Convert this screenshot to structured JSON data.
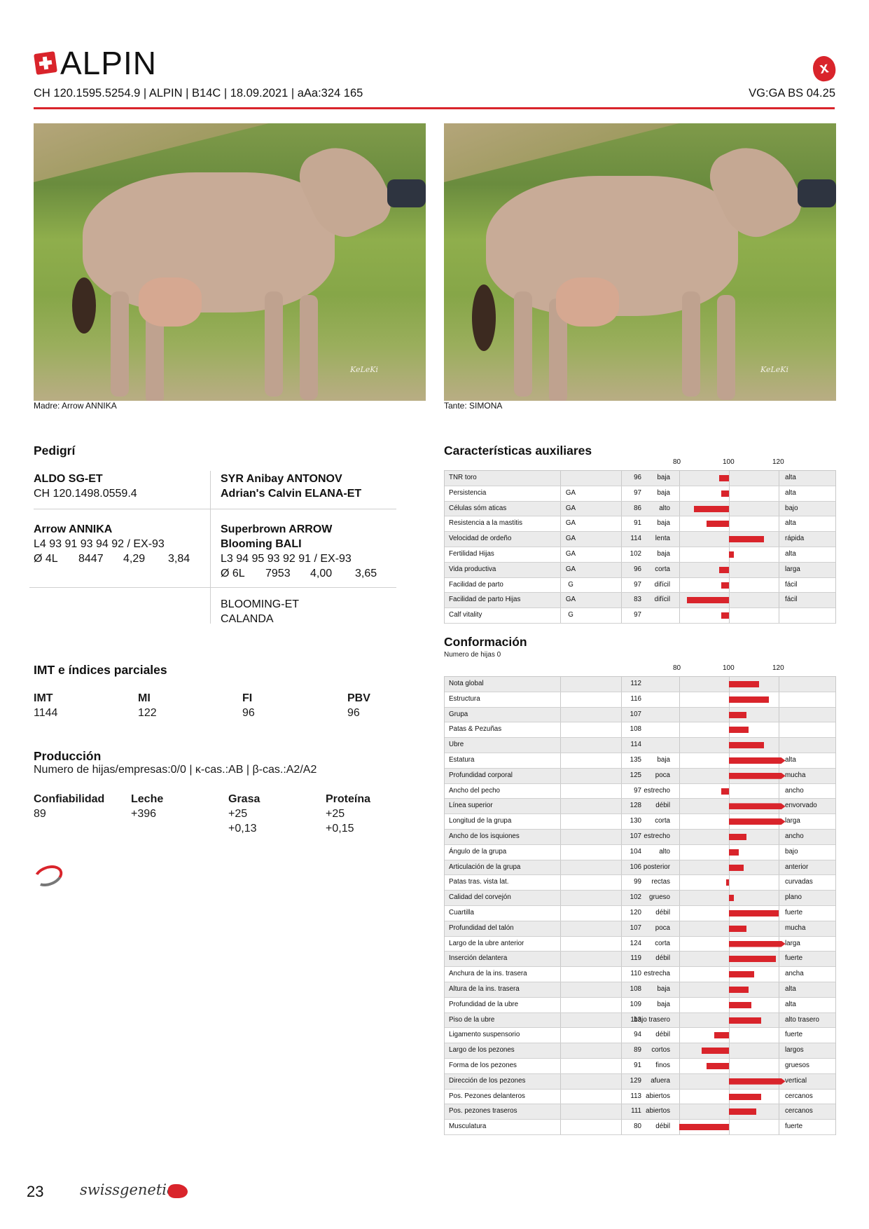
{
  "header": {
    "name": "ALPIN",
    "subline": "CH 120.1595.5254.9 | ALPIN | B14C | 18.09.2021 | aAa:324 165",
    "vg": "VG:GA BS 04.25"
  },
  "photos": [
    {
      "caption": "Madre: Arrow ANNIKA",
      "watermark": "KeLeKi"
    },
    {
      "caption": "Tante: SIMONA",
      "watermark": "KeLeKi"
    }
  ],
  "pedigree": {
    "title": "Pedigrí",
    "sire": {
      "name": "ALDO SG-ET",
      "id": "CH 120.1498.0559.4"
    },
    "sire_parents": {
      "line1": "SYR Anibay ANTONOV",
      "line2": "Adrian's Calvin ELANA-ET"
    },
    "dam": {
      "name": "Arrow ANNIKA",
      "line1": "L4 93 91 93 94 92 / EX-93",
      "avg": "Ø 4L",
      "milk": "8447",
      "fat": "4,29",
      "protein": "3,84"
    },
    "dam_sire": {
      "name": "Superbrown ARROW"
    },
    "dam_dam": {
      "name": "Blooming BALI",
      "line1": "L3 94 95 93 92 91 / EX-93",
      "avg": "Ø 6L",
      "milk": "7953",
      "fat": "4,00",
      "protein": "3,65"
    },
    "ggdam": {
      "line1": "BLOOMING-ET",
      "line2": "CALANDA"
    }
  },
  "imt": {
    "title": "IMT e índices parciales",
    "items": [
      {
        "label": "IMT",
        "value": "1144"
      },
      {
        "label": "MI",
        "value": "122"
      },
      {
        "label": "FI",
        "value": "96"
      },
      {
        "label": "PBV",
        "value": "96"
      }
    ]
  },
  "production": {
    "title": "Producción",
    "subtitle": "Numero de hijas/empresas:0/0 | κ-cas.:AB | β-cas.:A2/A2",
    "items": [
      {
        "label": "Confiabilidad",
        "v1": "89",
        "v2": ""
      },
      {
        "label": "Leche",
        "v1": "+396",
        "v2": ""
      },
      {
        "label": "Grasa",
        "v1": "+25",
        "v2": "+0,13"
      },
      {
        "label": "Proteína",
        "v1": "+25",
        "v2": "+0,15"
      }
    ]
  },
  "aux": {
    "title": "Características auxiliares",
    "scale": [
      "80",
      "100",
      "120"
    ],
    "rows": [
      {
        "name": "TNR toro",
        "type": "",
        "value": 96,
        "low": "baja",
        "high": "alta"
      },
      {
        "name": "Persistencia",
        "type": "GA",
        "value": 97,
        "low": "baja",
        "high": "alta"
      },
      {
        "name": "Células sóm aticas",
        "type": "GA",
        "value": 86,
        "low": "alto",
        "high": "bajo"
      },
      {
        "name": "Resistencia a la mastitis",
        "type": "GA",
        "value": 91,
        "low": "baja",
        "high": "alta"
      },
      {
        "name": "Velocidad de ordeño",
        "type": "GA",
        "value": 114,
        "low": "lenta",
        "high": "rápida"
      },
      {
        "name": "Fertilidad Hijas",
        "type": "GA",
        "value": 102,
        "low": "baja",
        "high": "alta"
      },
      {
        "name": "Vida productiva",
        "type": "GA",
        "value": 96,
        "low": "corta",
        "high": "larga"
      },
      {
        "name": "Facilidad de parto",
        "type": "G",
        "value": 97,
        "low": "difícil",
        "high": "fácil"
      },
      {
        "name": "Facilidad de parto Hijas",
        "type": "GA",
        "value": 83,
        "low": "difícil",
        "high": "fácil"
      },
      {
        "name": "Calf vitality",
        "type": "G",
        "value": 97,
        "low": "",
        "high": ""
      }
    ]
  },
  "conf": {
    "title": "Conformación",
    "subtitle": "Numero de hijas 0",
    "scale": [
      "80",
      "100",
      "120"
    ],
    "rows": [
      {
        "name": "Nota global",
        "value": 112,
        "low": "",
        "high": ""
      },
      {
        "name": "Estructura",
        "value": 116,
        "low": "",
        "high": ""
      },
      {
        "name": "Grupa",
        "value": 107,
        "low": "",
        "high": ""
      },
      {
        "name": "Patas & Pezuñas",
        "value": 108,
        "low": "",
        "high": ""
      },
      {
        "name": "Ubre",
        "value": 114,
        "low": "",
        "high": ""
      },
      {
        "name": "Estatura",
        "value": 135,
        "low": "baja",
        "high": "alta"
      },
      {
        "name": "Profundidad corporal",
        "value": 125,
        "low": "poca",
        "high": "mucha"
      },
      {
        "name": "Ancho del pecho",
        "value": 97,
        "low": "estrecho",
        "high": "ancho"
      },
      {
        "name": "Línea superior",
        "value": 128,
        "low": "débil",
        "high": "envorvado"
      },
      {
        "name": "Longitud de la grupa",
        "value": 130,
        "low": "corta",
        "high": "larga"
      },
      {
        "name": "Ancho de los isquiones",
        "value": 107,
        "low": "estrecho",
        "high": "ancho"
      },
      {
        "name": "Ángulo de la grupa",
        "value": 104,
        "low": "alto",
        "high": "bajo"
      },
      {
        "name": "Articulación de la grupa",
        "value": 106,
        "low": "posterior",
        "high": "anterior"
      },
      {
        "name": "Patas tras. vista lat.",
        "value": 99,
        "low": "rectas",
        "high": "curvadas"
      },
      {
        "name": "Calidad del corvejón",
        "value": 102,
        "low": "grueso",
        "high": "plano"
      },
      {
        "name": "Cuartilla",
        "value": 120,
        "low": "débil",
        "high": "fuerte"
      },
      {
        "name": "Profundidad del talón",
        "value": 107,
        "low": "poca",
        "high": "mucha"
      },
      {
        "name": "Largo de la ubre anterior",
        "value": 124,
        "low": "corta",
        "high": "larga"
      },
      {
        "name": "Inserción delantera",
        "value": 119,
        "low": "débil",
        "high": "fuerte"
      },
      {
        "name": "Anchura de la ins. trasera",
        "value": 110,
        "low": "estrecha",
        "high": "ancha"
      },
      {
        "name": "Altura de la ins. trasera",
        "value": 108,
        "low": "baja",
        "high": "alta"
      },
      {
        "name": "Profundidad de la ubre",
        "value": 109,
        "low": "baja",
        "high": "alta"
      },
      {
        "name": "Piso de la ubre",
        "value": 113,
        "low": "bajo trasero",
        "high": "alto trasero"
      },
      {
        "name": "Ligamento suspensorio",
        "value": 94,
        "low": "débil",
        "high": "fuerte"
      },
      {
        "name": "Largo de los pezones",
        "value": 89,
        "low": "cortos",
        "high": "largos"
      },
      {
        "name": "Forma de los pezones",
        "value": 91,
        "low": "finos",
        "high": "gruesos"
      },
      {
        "name": "Dirección de los pezones",
        "value": 129,
        "low": "afuera",
        "high": "vertical"
      },
      {
        "name": "Pos. Pezones delanteros",
        "value": 113,
        "low": "abiertos",
        "high": "cercanos"
      },
      {
        "name": "Pos. pezones traseros",
        "value": 111,
        "low": "abiertos",
        "high": "cercanos"
      },
      {
        "name": "Musculatura",
        "value": 80,
        "low": "débil",
        "high": "fuerte"
      }
    ]
  },
  "footer": {
    "page": "23",
    "brand": "swissgenetics"
  },
  "colors": {
    "accent": "#d9242b",
    "row_alt": "#ebebeb"
  }
}
